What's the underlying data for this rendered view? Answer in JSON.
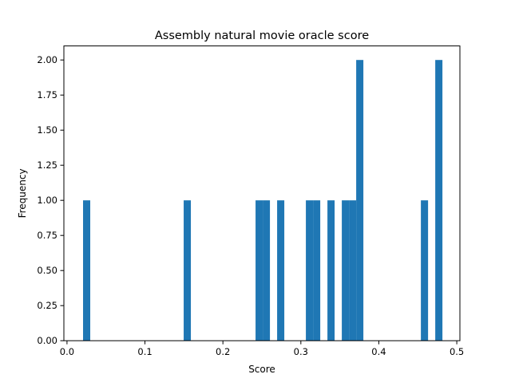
{
  "chart_data": {
    "type": "bar",
    "title": "Assembly natural movie oracle score",
    "xlabel": "Score",
    "ylabel": "Frequency",
    "xlim": [
      -0.004,
      0.504
    ],
    "ylim": [
      0,
      2.1
    ],
    "xticks": [
      0.0,
      0.1,
      0.2,
      0.3,
      0.4,
      0.5
    ],
    "xtick_labels": [
      "0.0",
      "0.1",
      "0.2",
      "0.3",
      "0.4",
      "0.5"
    ],
    "yticks": [
      0,
      0.25,
      0.5,
      0.75,
      1.0,
      1.25,
      1.5,
      1.75,
      2.0
    ],
    "ytick_labels": [
      "0.00",
      "0.25",
      "0.50",
      "0.75",
      "1.00",
      "1.25",
      "1.50",
      "1.75",
      "2.00"
    ],
    "grid": false,
    "bar_color": "#1f77b4",
    "bins": {
      "start": 0.0206,
      "width": 0.00922,
      "count": 50,
      "counts": [
        1,
        0,
        0,
        0,
        0,
        0,
        0,
        0,
        0,
        0,
        0,
        0,
        0,
        0,
        1,
        0,
        0,
        0,
        0,
        0,
        0,
        0,
        0,
        0,
        1,
        1,
        0,
        1,
        0,
        0,
        0,
        1,
        1,
        0,
        1,
        0,
        1,
        1,
        2,
        0,
        0,
        0,
        0,
        0,
        0,
        0,
        0,
        1,
        0,
        2
      ]
    }
  }
}
